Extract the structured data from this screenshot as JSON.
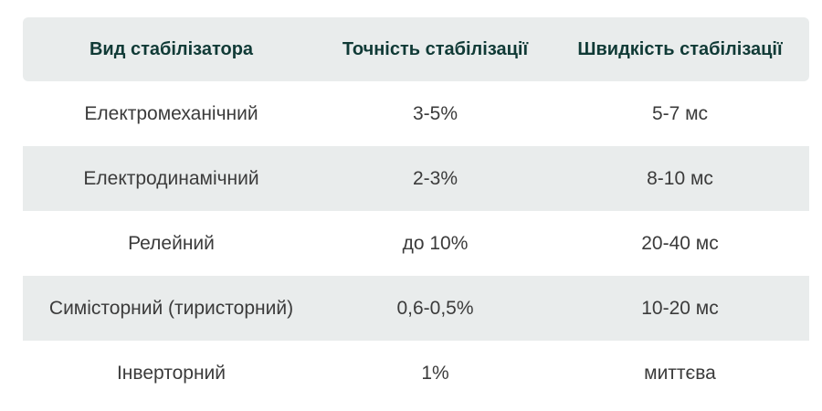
{
  "table": {
    "headers": [
      "Вид стабілізатора",
      "Точність стабілізації",
      "Швидкість стабілізації"
    ],
    "rows": [
      [
        "Електромеханічний",
        "3-5%",
        "5-7 мс"
      ],
      [
        "Електродинамічний",
        "2-3%",
        "8-10 мс"
      ],
      [
        "Релейний",
        "до 10%",
        "20-40 мс"
      ],
      [
        "Симісторний (тиристорний)",
        "0,6-0,5%",
        "10-20 мс"
      ],
      [
        "Інверторний",
        "1%",
        "миттєва"
      ]
    ]
  },
  "colors": {
    "header_background": "#e9ecec",
    "header_text": "#103a36",
    "body_text": "#3b3b3b",
    "stripe": "#e9ecec"
  }
}
